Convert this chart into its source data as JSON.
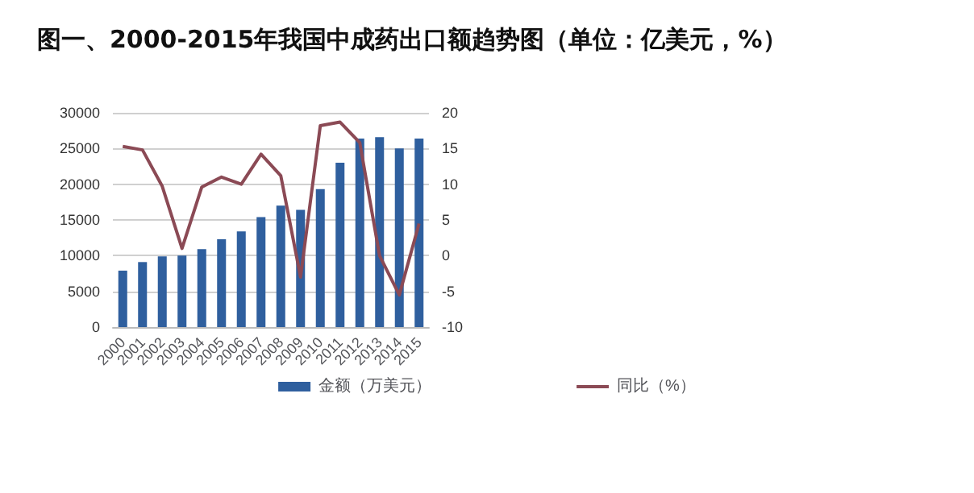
{
  "chart_data": {
    "type": "bar",
    "title": "图一、2000-2015年我国中成药出口额趋势图（单位：亿美元，%）",
    "categories": [
      "2000",
      "2001",
      "2002",
      "2003",
      "2004",
      "2005",
      "2006",
      "2007",
      "2008",
      "2009",
      "2010",
      "2011",
      "2012",
      "2013",
      "2014",
      "2015"
    ],
    "series": [
      {
        "name": "金额（万美元）",
        "color": "#2f5f9e",
        "values": [
          7900,
          9100,
          9900,
          10000,
          10900,
          12300,
          13400,
          15400,
          17000,
          16400,
          19300,
          23000,
          26400,
          26600,
          25000,
          26400
        ]
      },
      {
        "name": "同比（%）",
        "type": "line",
        "axis": "y2",
        "color": "#8b4a55",
        "values": [
          15.3,
          14.8,
          9.7,
          1,
          9.6,
          11,
          10,
          14.2,
          11.2,
          -3,
          18.2,
          18.7,
          15.8,
          0,
          -5.5,
          4.5
        ]
      }
    ],
    "ylim": [
      0,
      30000
    ],
    "yticks": [
      0,
      5000,
      10000,
      15000,
      20000,
      25000,
      30000
    ],
    "y2lim": [
      -10,
      20
    ],
    "y2ticks": [
      -10,
      -5,
      0,
      5,
      10,
      15,
      20
    ],
    "grid": "y",
    "legend": "bottom",
    "marker": "none"
  }
}
